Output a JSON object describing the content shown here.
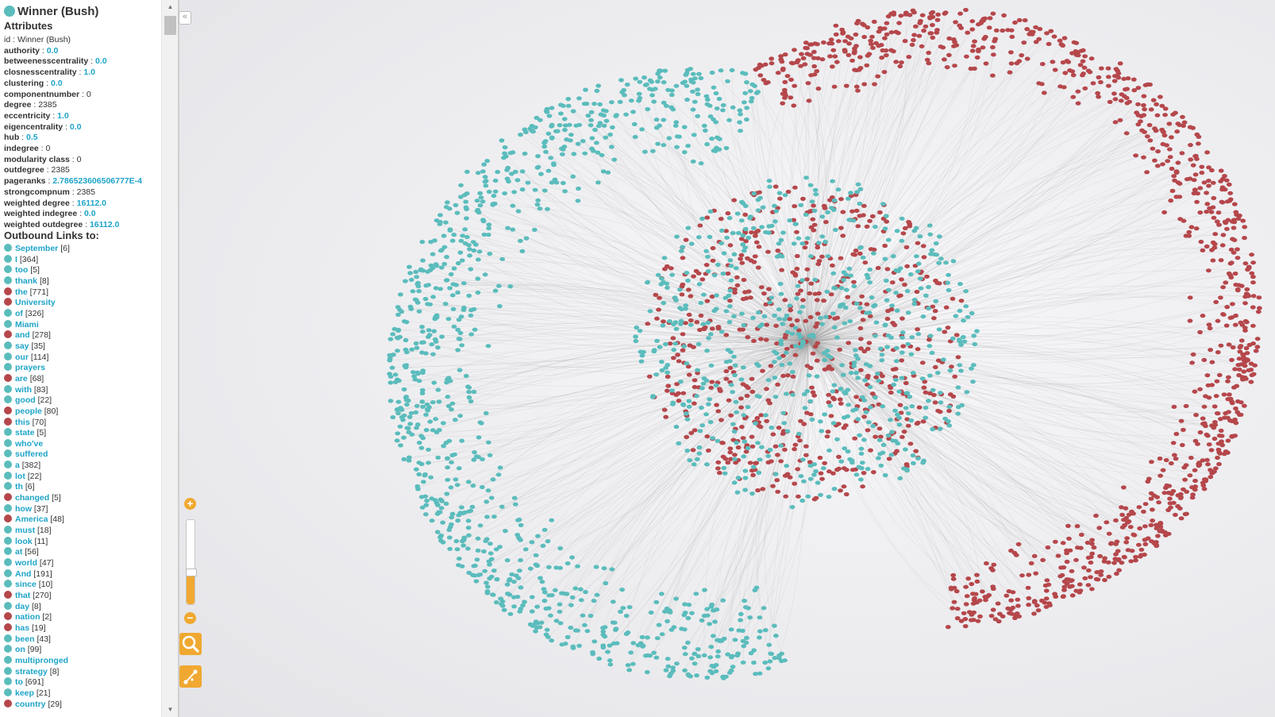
{
  "node": {
    "title": "Winner (Bush)",
    "color": "#5bbcbc"
  },
  "attributes_heading": "Attributes",
  "attributes": [
    {
      "key": "id",
      "value": "Winner (Bush)",
      "hl": false
    },
    {
      "key": "authority",
      "value": "0.0",
      "hl": true
    },
    {
      "key": "betweenesscentrality",
      "value": "0.0",
      "hl": true
    },
    {
      "key": "closnesscentrality",
      "value": "1.0",
      "hl": true
    },
    {
      "key": "clustering",
      "value": "0.0",
      "hl": true
    },
    {
      "key": "componentnumber",
      "value": "0",
      "hl": false
    },
    {
      "key": "degree",
      "value": "2385",
      "hl": false
    },
    {
      "key": "eccentricity",
      "value": "1.0",
      "hl": true
    },
    {
      "key": "eigencentrality",
      "value": "0.0",
      "hl": true
    },
    {
      "key": "hub",
      "value": "0.5",
      "hl": true
    },
    {
      "key": "indegree",
      "value": "0",
      "hl": false
    },
    {
      "key": "modularity class",
      "value": "0",
      "hl": false
    },
    {
      "key": "outdegree",
      "value": "2385",
      "hl": false
    },
    {
      "key": "pageranks",
      "value": "2.786523606506777E-4",
      "hl": true
    },
    {
      "key": "strongcompnum",
      "value": "2385",
      "hl": false
    },
    {
      "key": "weighted degree",
      "value": "16112.0",
      "hl": true
    },
    {
      "key": "weighted indegree",
      "value": "0.0",
      "hl": true
    },
    {
      "key": "weighted outdegree",
      "value": "16112.0",
      "hl": true
    }
  ],
  "links_heading": "Outbound Links to:",
  "colors": {
    "teal": "#5bbcbc",
    "red": "#b5474b",
    "accent": "#f0a830",
    "link": "#1ea4c8"
  },
  "links": [
    {
      "word": "September",
      "count": "[6]",
      "c": "teal"
    },
    {
      "word": "I",
      "count": "[364]",
      "c": "teal"
    },
    {
      "word": "too",
      "count": "[5]",
      "c": "teal"
    },
    {
      "word": "thank",
      "count": "[8]",
      "c": "teal"
    },
    {
      "word": "the",
      "count": "[771]",
      "c": "red"
    },
    {
      "word": "University",
      "count": "",
      "c": "red"
    },
    {
      "word": "of",
      "count": "[326]",
      "c": "teal"
    },
    {
      "word": "Miami",
      "count": "",
      "c": "teal"
    },
    {
      "word": "and",
      "count": "[278]",
      "c": "red"
    },
    {
      "word": "say",
      "count": "[35]",
      "c": "teal"
    },
    {
      "word": "our",
      "count": "[114]",
      "c": "teal"
    },
    {
      "word": "prayers",
      "count": "",
      "c": "teal"
    },
    {
      "word": "are",
      "count": "[68]",
      "c": "red"
    },
    {
      "word": "with",
      "count": "[83]",
      "c": "teal"
    },
    {
      "word": "good",
      "count": "[22]",
      "c": "teal"
    },
    {
      "word": "people",
      "count": "[80]",
      "c": "red"
    },
    {
      "word": "this",
      "count": "[70]",
      "c": "red"
    },
    {
      "word": "state",
      "count": "[5]",
      "c": "teal"
    },
    {
      "word": "who've",
      "count": "",
      "c": "teal"
    },
    {
      "word": "suffered",
      "count": "",
      "c": "teal"
    },
    {
      "word": "a",
      "count": "[382]",
      "c": "teal"
    },
    {
      "word": "lot",
      "count": "[22]",
      "c": "teal"
    },
    {
      "word": "th",
      "count": "[6]",
      "c": "teal"
    },
    {
      "word": "changed",
      "count": "[5]",
      "c": "red"
    },
    {
      "word": "how",
      "count": "[37]",
      "c": "teal"
    },
    {
      "word": "America",
      "count": "[48]",
      "c": "red"
    },
    {
      "word": "must",
      "count": "[18]",
      "c": "teal"
    },
    {
      "word": "look",
      "count": "[11]",
      "c": "teal"
    },
    {
      "word": "at",
      "count": "[56]",
      "c": "teal"
    },
    {
      "word": "world",
      "count": "[47]",
      "c": "teal"
    },
    {
      "word": "And",
      "count": "[191]",
      "c": "teal"
    },
    {
      "word": "since",
      "count": "[10]",
      "c": "teal"
    },
    {
      "word": "that",
      "count": "[270]",
      "c": "red"
    },
    {
      "word": "day",
      "count": "[8]",
      "c": "teal"
    },
    {
      "word": "nation",
      "count": "[2]",
      "c": "red"
    },
    {
      "word": "has",
      "count": "[19]",
      "c": "red"
    },
    {
      "word": "been",
      "count": "[43]",
      "c": "teal"
    },
    {
      "word": "on",
      "count": "[99]",
      "c": "teal"
    },
    {
      "word": "multipronged",
      "count": "",
      "c": "teal"
    },
    {
      "word": "strategy",
      "count": "[8]",
      "c": "teal"
    },
    {
      "word": "to",
      "count": "[691]",
      "c": "teal"
    },
    {
      "word": "keep",
      "count": "[21]",
      "c": "teal"
    },
    {
      "word": "country",
      "count": "[29]",
      "c": "red"
    }
  ],
  "controls": {
    "zoom_in": "+",
    "zoom_out": "−",
    "collapse": "«",
    "zoom_level": 0.37,
    "search_icon": "magnifier-icon",
    "layout_icon": "edge-tool-icon"
  }
}
